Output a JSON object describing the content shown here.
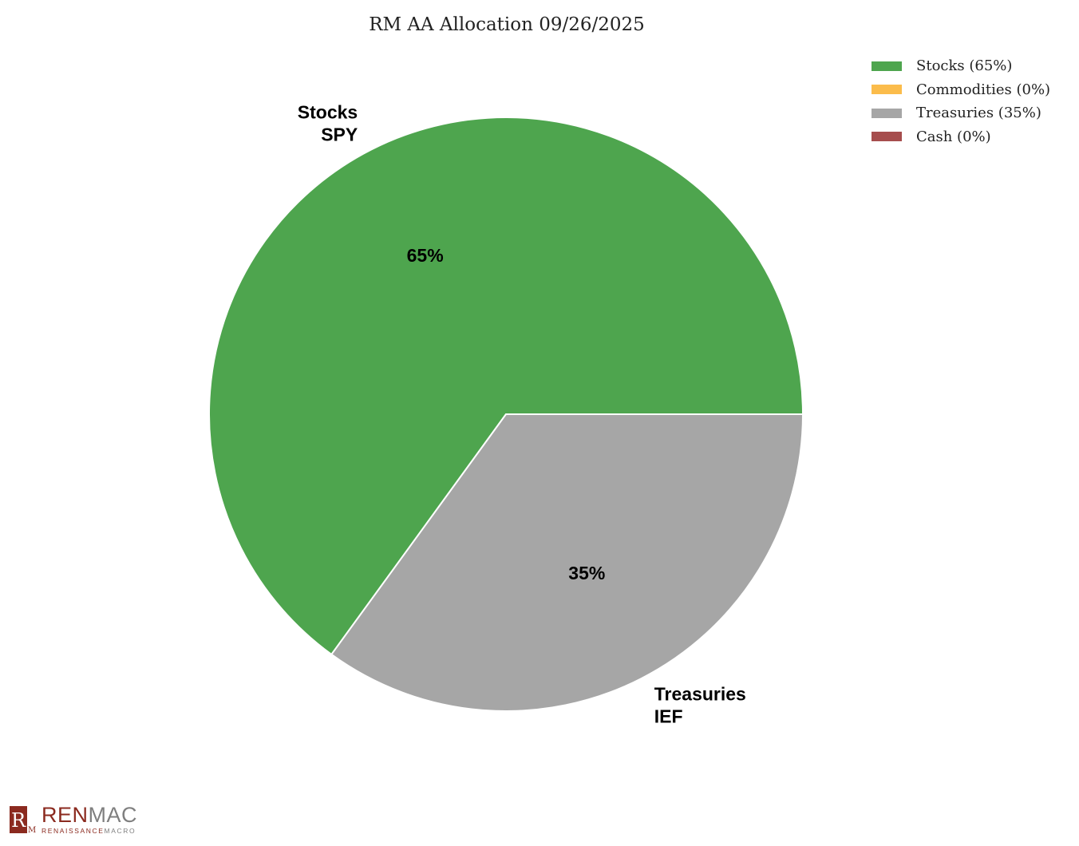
{
  "colors": {
    "stocks": "#4ea54e",
    "commodities": "#fbbc4b",
    "treasuries": "#a6a6a6",
    "cash": "#a64d4d",
    "slice_border": "#ffffff"
  },
  "chart_data": {
    "type": "pie",
    "title": "RM AA Allocation 09/26/2025",
    "slices": [
      {
        "key": "stocks",
        "name": "Stocks",
        "ticker": "SPY",
        "value": 65,
        "pct_label": "65%",
        "color": "#4ea54e"
      },
      {
        "key": "commodities",
        "name": "Commodities",
        "ticker": "",
        "value": 0,
        "pct_label": "0%",
        "color": "#fbbc4b"
      },
      {
        "key": "treasuries",
        "name": "Treasuries",
        "ticker": "IEF",
        "value": 35,
        "pct_label": "35%",
        "color": "#a6a6a6"
      },
      {
        "key": "cash",
        "name": "Cash",
        "ticker": "",
        "value": 0,
        "pct_label": "0%",
        "color": "#a64d4d"
      }
    ],
    "legend": [
      {
        "label": "Stocks (65%)",
        "color": "#4ea54e"
      },
      {
        "label": "Commodities (0%)",
        "color": "#fbbc4b"
      },
      {
        "label": "Treasuries (35%)",
        "color": "#a6a6a6"
      },
      {
        "label": "Cash (0%)",
        "color": "#a64d4d"
      }
    ],
    "legend_position": "top-right"
  },
  "logo": {
    "word_a": "REN",
    "word_b": "MAC",
    "sub_a": "RENAISSANCE",
    "sub_b": "MACRO",
    "mark_letters": "R"
  }
}
